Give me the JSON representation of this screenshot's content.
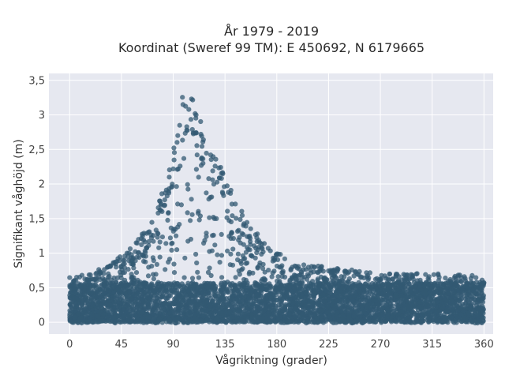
{
  "chart_data": {
    "type": "scatter",
    "title_line1": "År 1979 - 2019",
    "title_line2": "Koordinat (Sweref 99 TM): E 450692, N 6179665",
    "xlabel": "Vågriktning (grader)",
    "ylabel": "Signifikant våghöjd (m)",
    "xlim": [
      -18,
      368
    ],
    "ylim": [
      -0.17,
      3.6
    ],
    "xticks": [
      0,
      45,
      90,
      135,
      180,
      225,
      270,
      315,
      360
    ],
    "xtick_labels": [
      "0",
      "45",
      "90",
      "135",
      "180",
      "225",
      "270",
      "315",
      "360"
    ],
    "yticks": [
      0,
      0.5,
      1,
      1.5,
      2,
      2.5,
      3,
      3.5
    ],
    "ytick_labels": [
      "0",
      "0,5",
      "1",
      "1,5",
      "2",
      "2,5",
      "3",
      "3,5"
    ],
    "grid": true,
    "marker_color": "#335a73",
    "background_color": "#e6e8f0",
    "envelope": {
      "direction_deg": [
        0,
        15,
        30,
        45,
        60,
        75,
        90,
        100,
        110,
        120,
        135,
        150,
        165,
        180,
        200,
        225,
        250,
        270,
        300,
        330,
        360
      ],
      "upper_height_m": [
        0.65,
        0.7,
        0.8,
        1.0,
        1.2,
        1.6,
        2.5,
        3.45,
        3.1,
        2.6,
        2.2,
        1.6,
        1.25,
        1.0,
        0.85,
        0.8,
        0.75,
        0.7,
        0.7,
        0.7,
        0.65
      ],
      "lower_height_m": 0.0
    }
  }
}
